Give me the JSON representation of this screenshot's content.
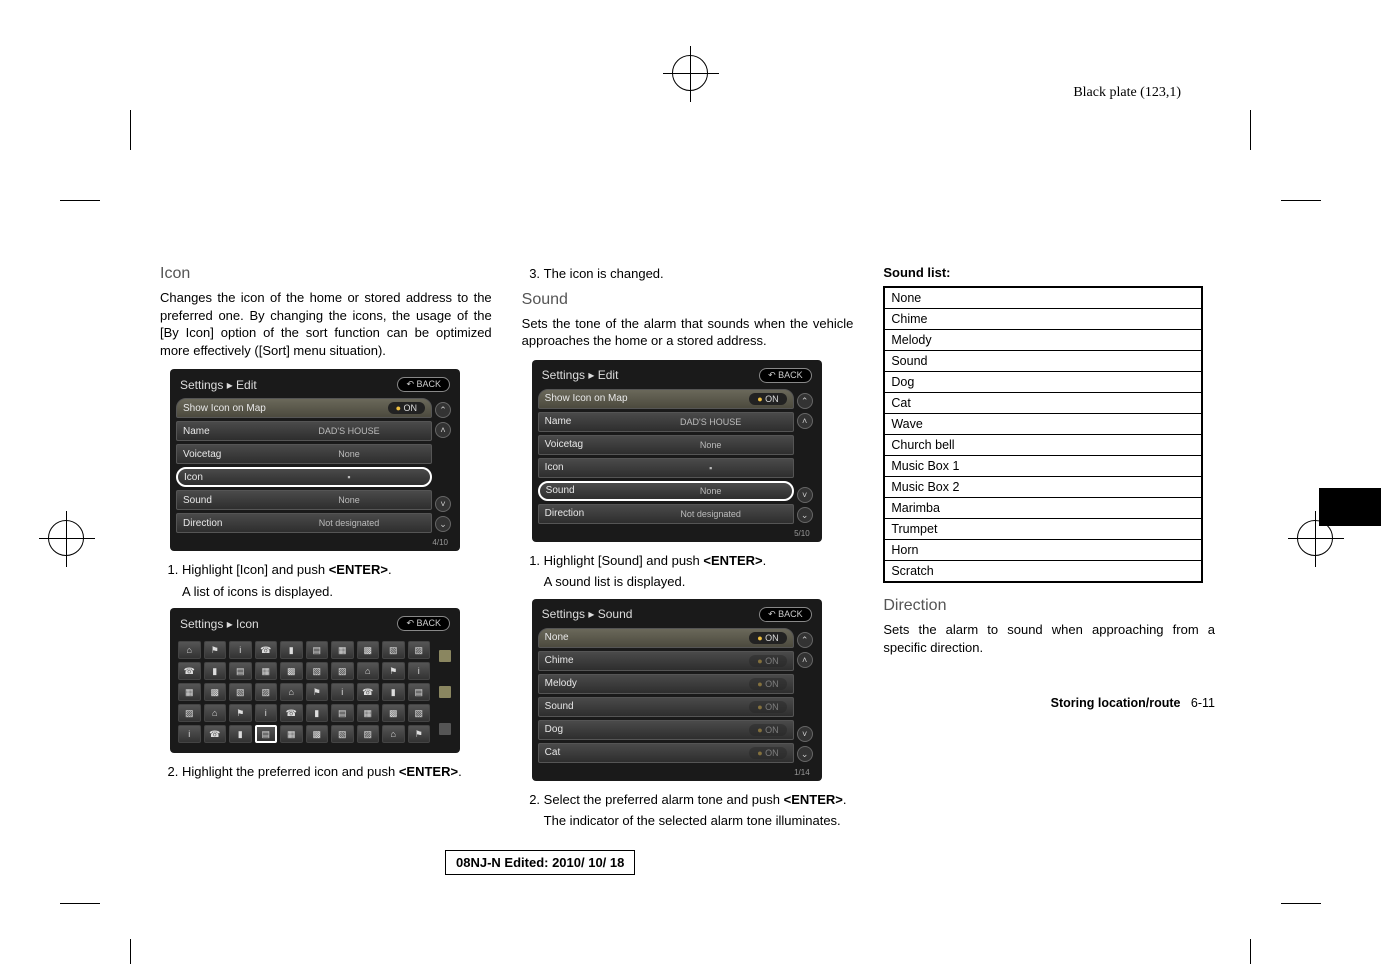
{
  "plate_label": "Black plate (123,1)",
  "col1": {
    "heading": "Icon",
    "para": "Changes the icon of the home or stored address to the preferred one. By changing the icons, the usage of the [By Icon] option of the sort function can be optimized more effectively ([Sort] menu situation).",
    "screenshot1": {
      "breadcrumb": "Settings ▸ Edit",
      "back": "↶ BACK",
      "rows": [
        {
          "label": "Show Icon on Map",
          "value": "",
          "pill": "ON",
          "tab": true
        },
        {
          "label": "Name",
          "value": "DAD'S HOUSE"
        },
        {
          "label": "Voicetag",
          "value": "None"
        },
        {
          "label": "Icon",
          "value": "▪",
          "hl": true
        },
        {
          "label": "Sound",
          "value": "None"
        },
        {
          "label": "Direction",
          "value": "Not designated"
        }
      ],
      "footer": "4/10"
    },
    "step1": "Highlight [Icon] and push <ENTER>.",
    "step1_sub": "A list of icons is displayed.",
    "screenshot2": {
      "breadcrumb": "Settings ▸ Icon",
      "back": "↶ BACK"
    },
    "step2": "Highlight the preferred icon and push <ENTER>."
  },
  "col2": {
    "step3": "The icon is changed.",
    "heading": "Sound",
    "para": "Sets the tone of the alarm that sounds when the vehicle approaches the home or a stored address.",
    "screenshot1": {
      "breadcrumb": "Settings ▸ Edit",
      "back": "↶ BACK",
      "rows": [
        {
          "label": "Show Icon on Map",
          "value": "",
          "pill": "ON",
          "tab": true
        },
        {
          "label": "Name",
          "value": "DAD'S HOUSE"
        },
        {
          "label": "Voicetag",
          "value": "None"
        },
        {
          "label": "Icon",
          "value": "▪"
        },
        {
          "label": "Sound",
          "value": "None",
          "hl": true
        },
        {
          "label": "Direction",
          "value": "Not designated"
        }
      ],
      "footer": "5/10"
    },
    "step1": "Highlight [Sound] and push <ENTER>.",
    "step1_sub": "A sound list is displayed.",
    "screenshot2": {
      "breadcrumb": "Settings ▸ Sound",
      "back": "↶ BACK",
      "rows": [
        {
          "label": "None",
          "pill": "ON",
          "tab": true,
          "lit": true
        },
        {
          "label": "Chime",
          "pill": "ON"
        },
        {
          "label": "Melody",
          "pill": "ON"
        },
        {
          "label": "Sound",
          "pill": "ON"
        },
        {
          "label": "Dog",
          "pill": "ON"
        },
        {
          "label": "Cat",
          "pill": "ON"
        }
      ],
      "footer": "1/14"
    },
    "step2": "Select the preferred alarm tone and push <ENTER>.",
    "step2_sub": "The indicator of the selected alarm tone illuminates."
  },
  "col3": {
    "sound_list_label": "Sound list:",
    "sound_list": [
      "None",
      "Chime",
      "Melody",
      "Sound",
      "Dog",
      "Cat",
      "Wave",
      "Church bell",
      "Music Box 1",
      "Music Box 2",
      "Marimba",
      "Trumpet",
      "Horn",
      "Scratch"
    ],
    "heading": "Direction",
    "para": "Sets the alarm to sound when approaching from a specific direction.",
    "footer_section": "Storing location/route",
    "footer_page": "6-11"
  },
  "edit_box": "08NJ-N Edited:  2010/ 10/ 18",
  "enter_word": "<ENTER>"
}
